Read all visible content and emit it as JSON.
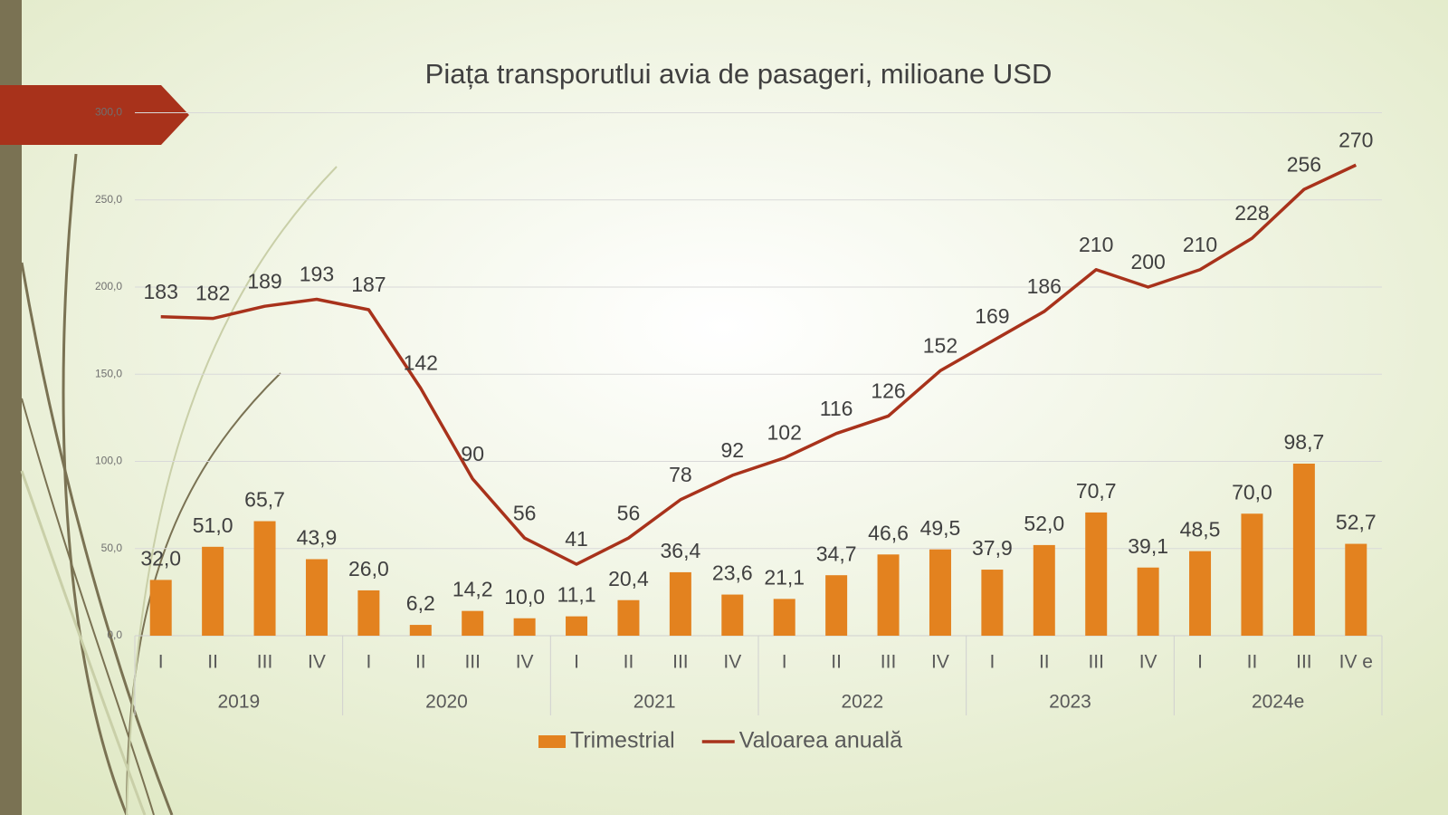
{
  "chart_data": {
    "type": "combo",
    "title": "Piața transporutlui avia de pasageri, milioane USD",
    "categories": [
      "I",
      "II",
      "III",
      "IV",
      "I",
      "II",
      "III",
      "IV",
      "I",
      "II",
      "III",
      "IV",
      "I",
      "II",
      "III",
      "IV",
      "I",
      "II",
      "III",
      "IV",
      "I",
      "II",
      "III",
      "IV e"
    ],
    "category_groups": [
      "2019",
      "2020",
      "2021",
      "2022",
      "2023",
      "2024e"
    ],
    "series": [
      {
        "name": "Trimestrial",
        "type": "bar",
        "color": "#e3821f",
        "values": [
          32,
          51,
          65.7,
          43.9,
          26,
          6.2,
          14.2,
          10,
          11.1,
          20.4,
          36.4,
          23.6,
          21.1,
          34.7,
          46.6,
          49.5,
          37.9,
          52,
          70.7,
          39.1,
          48.5,
          70,
          98.7,
          52.7
        ],
        "value_labels": [
          "32,0",
          "51,0",
          "65,7",
          "43,9",
          "26,0",
          "6,2",
          "14,2",
          "10,0",
          "11,1",
          "20,4",
          "36,4",
          "23,6",
          "21,1",
          "34,7",
          "46,6",
          "49,5",
          "37,9",
          "52,0",
          "70,7",
          "39,1",
          "48,5",
          "70,0",
          "98,7",
          "52,7"
        ]
      },
      {
        "name": "Valoarea anuală",
        "type": "line",
        "color": "#a8321b",
        "values": [
          183,
          182,
          189,
          193,
          187,
          142,
          90,
          56,
          41,
          56,
          78,
          92,
          102,
          116,
          126,
          152,
          169,
          186,
          210,
          200,
          210,
          228,
          256,
          270
        ]
      }
    ],
    "ylim": [
      0,
      300
    ],
    "yticks": [
      {
        "value": 0,
        "label": "0,0"
      },
      {
        "value": 50,
        "label": "50,0"
      },
      {
        "value": 100,
        "label": "100,0"
      },
      {
        "value": 150,
        "label": "150,0"
      },
      {
        "value": 200,
        "label": "200,0"
      },
      {
        "value": 250,
        "label": "250,0"
      },
      {
        "value": 300,
        "label": "300,0"
      }
    ],
    "grid": true,
    "legend": "bottom"
  }
}
